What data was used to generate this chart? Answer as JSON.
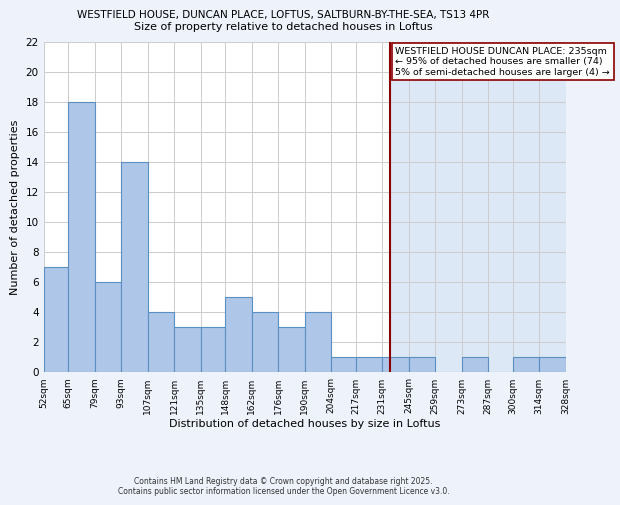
{
  "title_line1": "WESTFIELD HOUSE, DUNCAN PLACE, LOFTUS, SALTBURN-BY-THE-SEA, TS13 4PR",
  "title_line2": "Size of property relative to detached houses in Loftus",
  "xlabel": "Distribution of detached houses by size in Loftus",
  "ylabel": "Number of detached properties",
  "bin_edges": [
    52,
    65,
    79,
    93,
    107,
    121,
    135,
    148,
    162,
    176,
    190,
    204,
    217,
    231,
    245,
    259,
    273,
    287,
    300,
    314,
    328
  ],
  "bin_labels": [
    "52sqm",
    "65sqm",
    "79sqm",
    "93sqm",
    "107sqm",
    "121sqm",
    "135sqm",
    "148sqm",
    "162sqm",
    "176sqm",
    "190sqm",
    "204sqm",
    "217sqm",
    "231sqm",
    "245sqm",
    "259sqm",
    "273sqm",
    "287sqm",
    "300sqm",
    "314sqm",
    "328sqm"
  ],
  "counts": [
    7,
    18,
    6,
    14,
    4,
    3,
    3,
    5,
    4,
    3,
    4,
    1,
    1,
    1,
    1,
    0,
    1,
    0,
    1,
    1
  ],
  "bar_color": "#aec6e8",
  "bar_edge_color": "#5a8fc2",
  "bar_edge_width": 0.8,
  "vline_x": 235,
  "vline_color": "#8b0000",
  "annotation_text": "WESTFIELD HOUSE DUNCAN PLACE: 235sqm\n← 95% of detached houses are smaller (74)\n5% of semi-detached houses are larger (4) →",
  "annotation_box_color": "#ffffff",
  "annotation_box_edge": "#8b0000",
  "ylim": [
    0,
    22
  ],
  "yticks": [
    0,
    2,
    4,
    6,
    8,
    10,
    12,
    14,
    16,
    18,
    20,
    22
  ],
  "grid_color": "#cccccc",
  "bg_color": "#eef2fa",
  "plot_bg_left": "#ffffff",
  "plot_bg_right": "#dce8f5",
  "footer1": "Contains HM Land Registry data © Crown copyright and database right 2025.",
  "footer2": "Contains public sector information licensed under the Open Government Licence v3.0.",
  "title1_fontsize": 7.5,
  "title2_fontsize": 8.0,
  "xlabel_fontsize": 8.0,
  "ylabel_fontsize": 8.0,
  "xtick_fontsize": 6.5,
  "ytick_fontsize": 7.5,
  "annotation_fontsize": 6.8,
  "footer_fontsize": 5.5
}
